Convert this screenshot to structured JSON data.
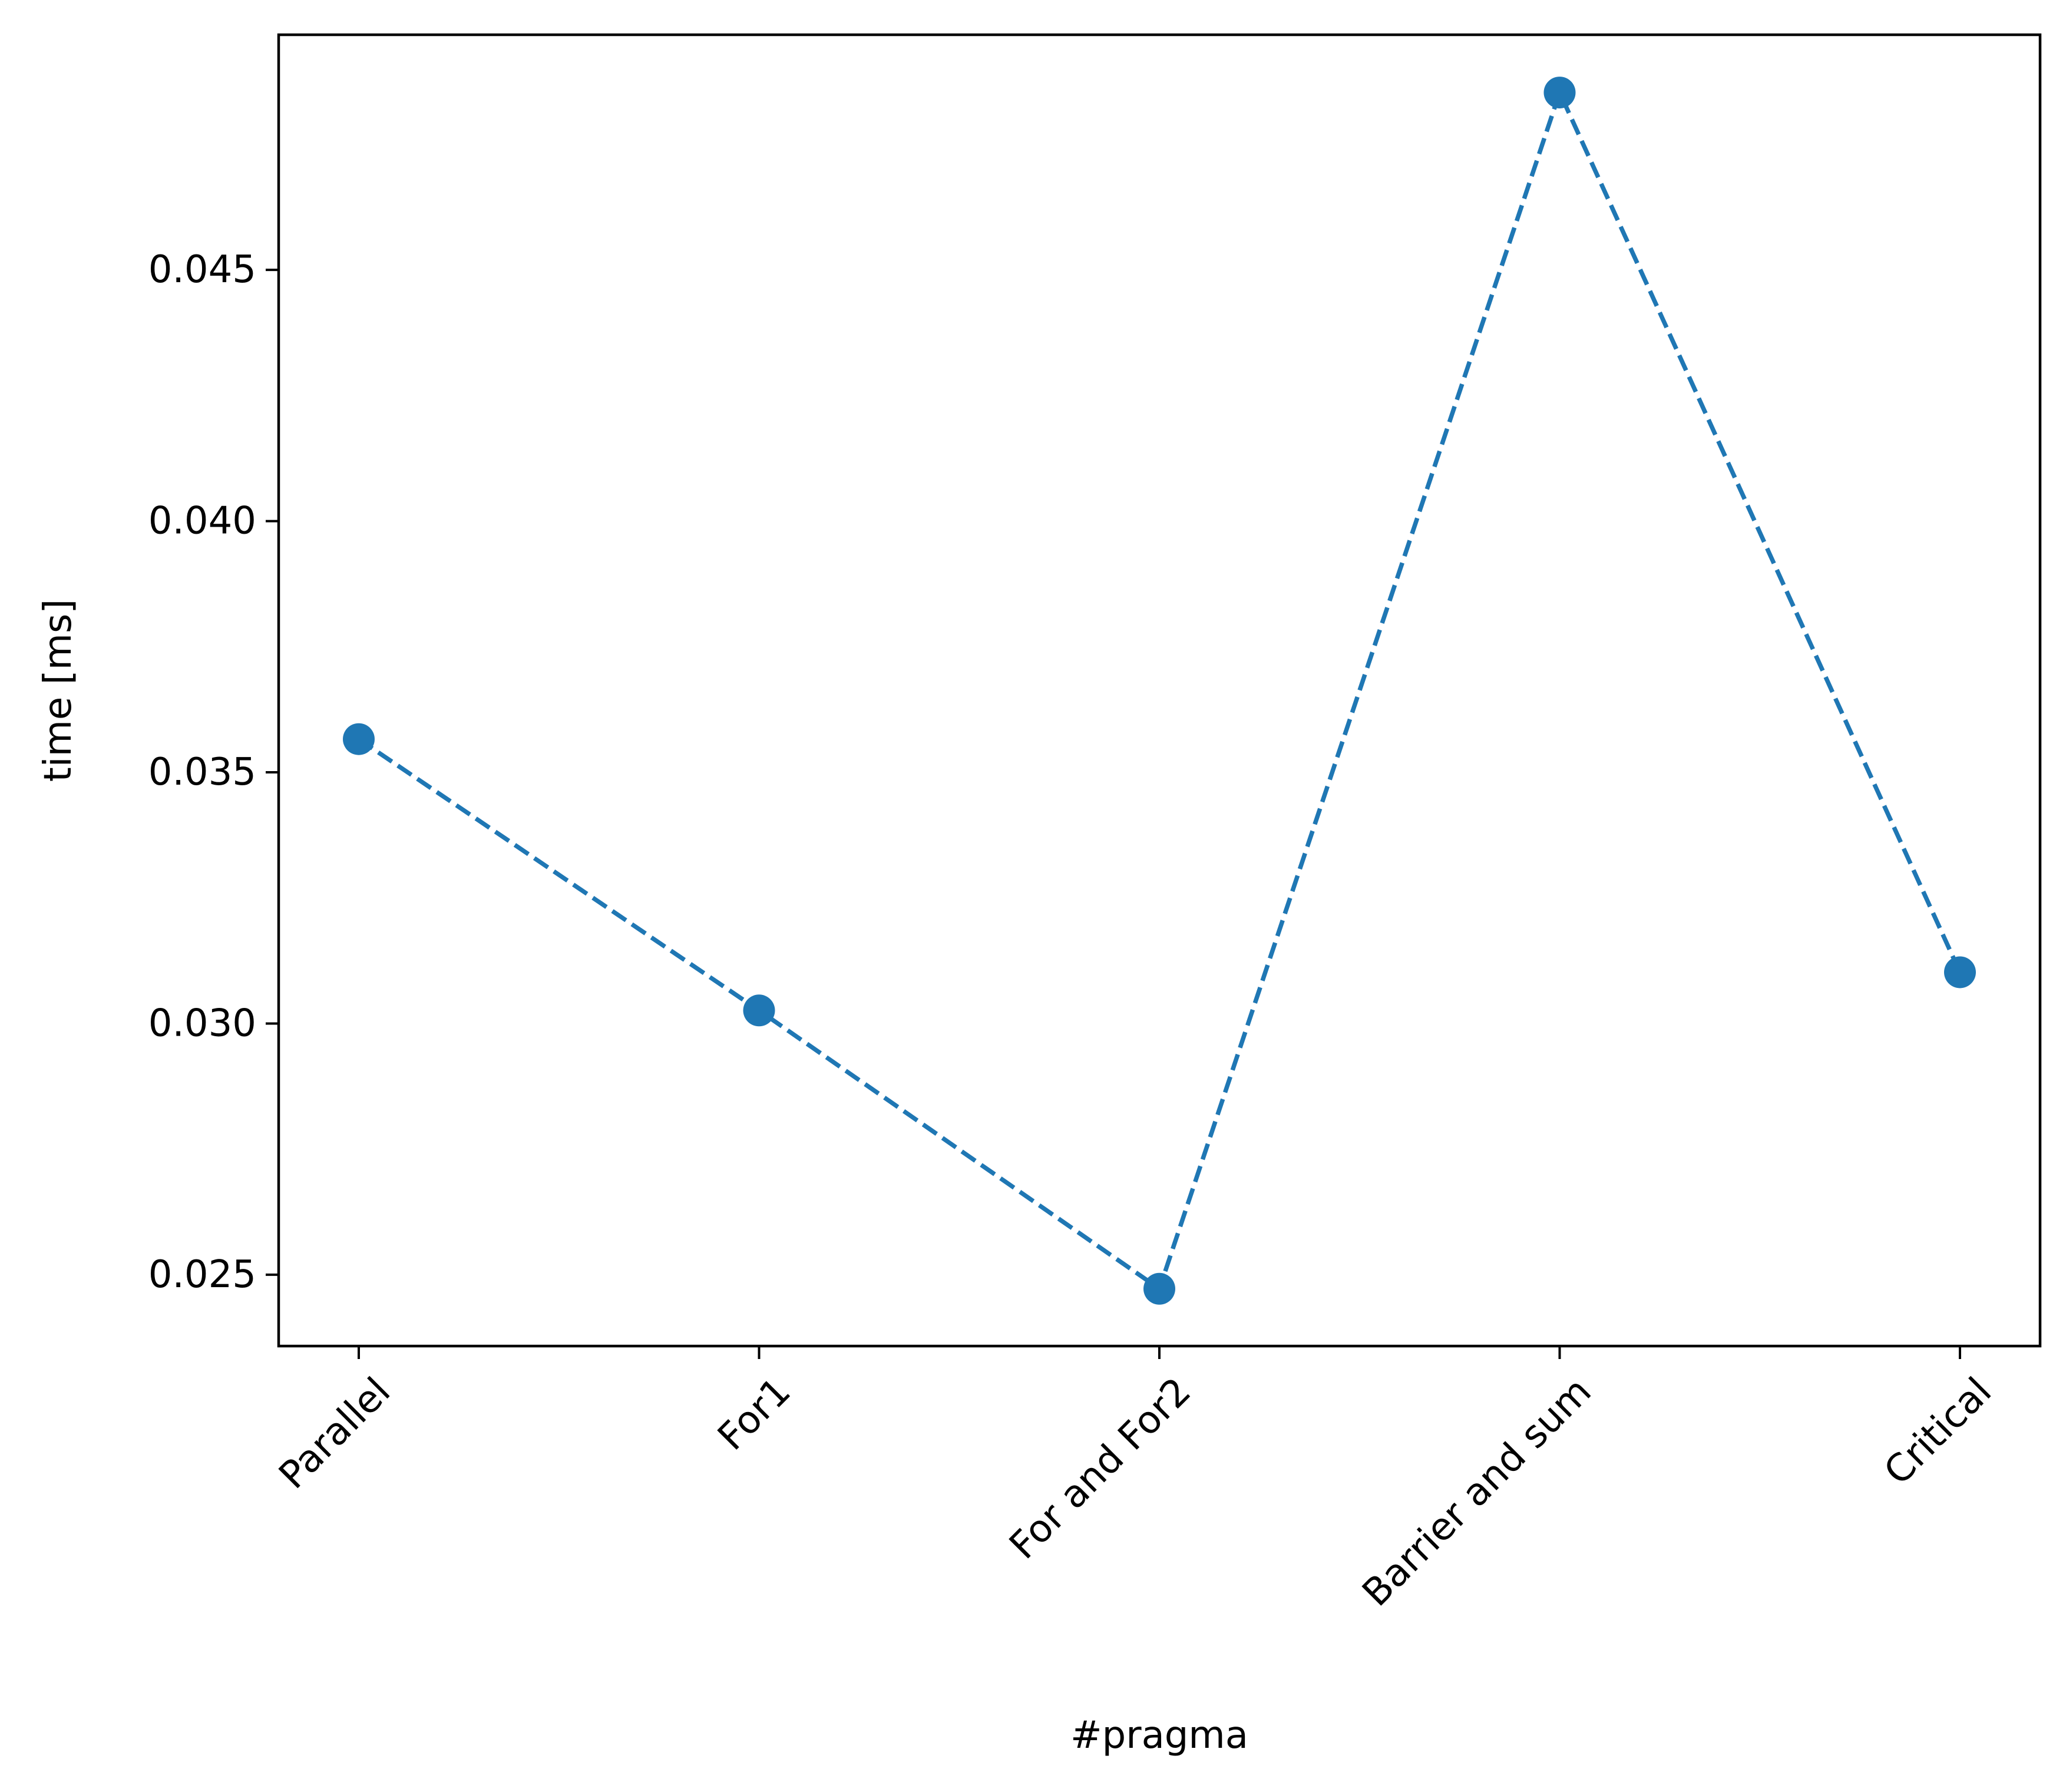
{
  "chart_data": {
    "type": "line",
    "title": "",
    "xlabel": "#pragma",
    "ylabel": "time [ms]",
    "categories": [
      "Parallel",
      "For1",
      "For and For2",
      "Barrier and sum",
      "Critical"
    ],
    "series": [
      {
        "values": [
          0.03566,
          0.03026,
          0.02472,
          0.04853,
          0.03102
        ],
        "color": "#1f77b4",
        "line_style": "dashed",
        "marker": "circle"
      }
    ],
    "ylim": [
      0.02358,
      0.04968
    ],
    "yticks": [
      0.025,
      0.03,
      0.035,
      0.04,
      0.045
    ],
    "ytick_labels": [
      "0.025",
      "0.030",
      "0.035",
      "0.040",
      "0.045"
    ],
    "xtick_rotation": 45,
    "grid": false,
    "legend": "none"
  }
}
